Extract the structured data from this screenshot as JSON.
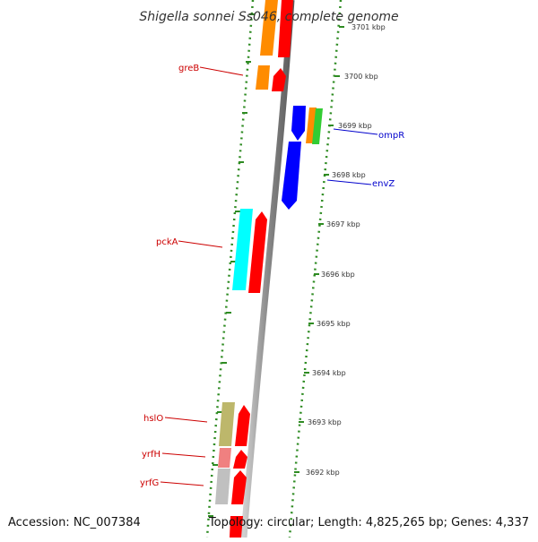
{
  "title": "Shigella sonnei Ss046, complete genome",
  "footer": {
    "accession": "Accession: NC_007384",
    "topology": "Topology: circular; Length: 4,825,265 bp; Genes: 4,337"
  },
  "colors": {
    "backbone": "#8a8a8a",
    "tick": "#2e8b22",
    "label_forward_strand": "#cc0000",
    "label_reverse_strand": "#0000cc"
  },
  "scale_labels": [
    "3701 kbp",
    "3700 kbp",
    "3699 kbp",
    "3698 kbp",
    "3697 kbp",
    "3696 kbp",
    "3695 kbp",
    "3694 kbp",
    "3693 kbp",
    "3692 kbp"
  ],
  "gene_labels": [
    {
      "name": "greB",
      "color": "#cc0000"
    },
    {
      "name": "ompR",
      "color": "#0000cc"
    },
    {
      "name": "envZ",
      "color": "#0000cc"
    },
    {
      "name": "pckA",
      "color": "#cc0000"
    },
    {
      "name": "hslO",
      "color": "#cc0000"
    },
    {
      "name": "yrfH",
      "color": "#cc0000"
    },
    {
      "name": "yrfG",
      "color": "#cc0000"
    }
  ],
  "feature_colors": {
    "cds_forward": "#ff0000",
    "cds_reverse": "#0000ff",
    "orange": "#ff8c00",
    "cyan": "#00ffff",
    "green": "#33cc33",
    "khaki": "#bdb76b",
    "pink": "#f08080",
    "silver": "#c0c0c0"
  }
}
